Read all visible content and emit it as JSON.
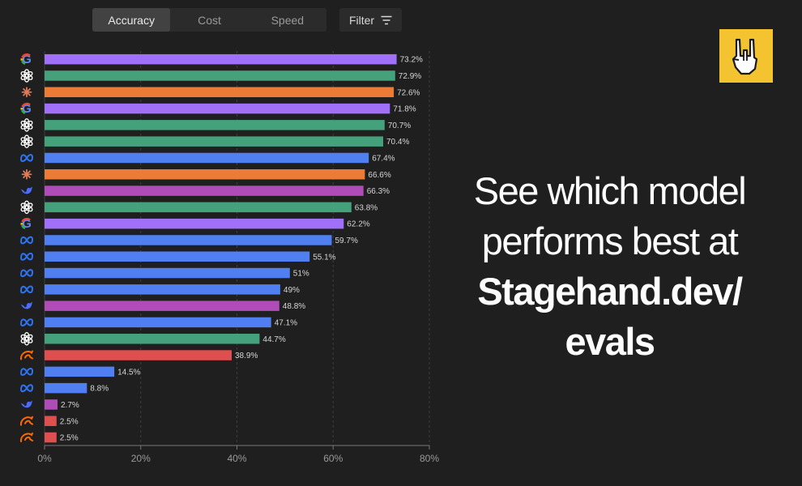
{
  "tabs": [
    {
      "label": "Accuracy",
      "active": true
    },
    {
      "label": "Cost",
      "active": false
    },
    {
      "label": "Speed",
      "active": false
    }
  ],
  "filter": {
    "label": "Filter",
    "icon": "filter-icon"
  },
  "logo": {
    "icon": "rock-hand-icon",
    "color": "#f4c430"
  },
  "tagline": {
    "line1": "See which model",
    "line2": "performs best at",
    "line3": "Stagehand.dev/",
    "line4": "evals"
  },
  "colors": {
    "google": "#a070f8",
    "openai": "#45a07c",
    "anthropic": "#ec7b36",
    "meta": "#4f7ff0",
    "deepseek": "#b04cb8",
    "alibaba": "#de5050"
  },
  "chart_data": {
    "type": "bar",
    "orientation": "horizontal",
    "xlim": [
      0,
      80
    ],
    "xticks": [
      "0%",
      "20%",
      "40%",
      "60%",
      "80%"
    ],
    "xtick_values": [
      0,
      20,
      40,
      60,
      80
    ],
    "grid": true,
    "bars": [
      {
        "provider": "google",
        "value": 73.2,
        "label": "73.2%"
      },
      {
        "provider": "openai",
        "value": 72.9,
        "label": "72.9%"
      },
      {
        "provider": "anthropic",
        "value": 72.6,
        "label": "72.6%"
      },
      {
        "provider": "google",
        "value": 71.8,
        "label": "71.8%"
      },
      {
        "provider": "openai",
        "value": 70.7,
        "label": "70.7%"
      },
      {
        "provider": "openai",
        "value": 70.4,
        "label": "70.4%"
      },
      {
        "provider": "meta",
        "value": 67.4,
        "label": "67.4%"
      },
      {
        "provider": "anthropic",
        "value": 66.6,
        "label": "66.6%"
      },
      {
        "provider": "deepseek",
        "value": 66.3,
        "label": "66.3%"
      },
      {
        "provider": "openai",
        "value": 63.8,
        "label": "63.8%"
      },
      {
        "provider": "google",
        "value": 62.2,
        "label": "62.2%"
      },
      {
        "provider": "meta",
        "value": 59.7,
        "label": "59.7%"
      },
      {
        "provider": "meta",
        "value": 55.1,
        "label": "55.1%"
      },
      {
        "provider": "meta",
        "value": 51,
        "label": "51%"
      },
      {
        "provider": "meta",
        "value": 49,
        "label": "49%"
      },
      {
        "provider": "deepseek",
        "value": 48.8,
        "label": "48.8%"
      },
      {
        "provider": "meta",
        "value": 47.1,
        "label": "47.1%"
      },
      {
        "provider": "openai",
        "value": 44.7,
        "label": "44.7%"
      },
      {
        "provider": "alibaba",
        "value": 38.9,
        "label": "38.9%"
      },
      {
        "provider": "meta",
        "value": 14.5,
        "label": "14.5%"
      },
      {
        "provider": "meta",
        "value": 8.8,
        "label": "8.8%"
      },
      {
        "provider": "deepseek",
        "value": 2.7,
        "label": "2.7%"
      },
      {
        "provider": "alibaba",
        "value": 2.5,
        "label": "2.5%"
      },
      {
        "provider": "alibaba",
        "value": 2.5,
        "label": "2.5%"
      }
    ]
  }
}
